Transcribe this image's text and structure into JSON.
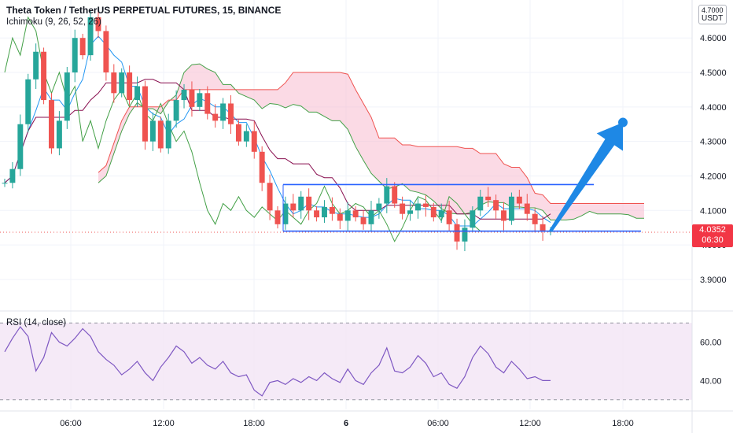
{
  "header": {
    "title": "Theta Token / TetherUS PERPETUAL FUTURES, 15, BINANCE",
    "indicator": "Ichimoku (9, 26, 52, 26)",
    "rsi": "RSI (14, close)"
  },
  "price_axis": {
    "top_label": "4.7000",
    "quote": "USDT",
    "last_price": "4.0352",
    "countdown": "06:30"
  },
  "colors": {
    "up": "#26a69a",
    "down": "#ef5350",
    "tenkan": "#2196f3",
    "kijun": "#880e4f",
    "chikou": "#43a047",
    "cloud_bull": "#a5d6a7",
    "cloud_bear": "#f8bbd0",
    "rsi": "#7e57c2",
    "arrow": "#1e88e5",
    "channel": "#2962ff"
  },
  "chart_data": {
    "type": "candlestick",
    "y_ticks": [
      "4.6000",
      "4.5000",
      "4.4000",
      "4.3000",
      "4.2000",
      "4.1000",
      "4.0000",
      "3.9000"
    ],
    "ylim": [
      3.82,
      4.71
    ],
    "x_ticks": [
      "06:00",
      "12:00",
      "18:00",
      "6",
      "06:00",
      "12:00",
      "18:00"
    ],
    "close_path": [
      4.18,
      4.22,
      4.35,
      4.48,
      4.56,
      4.42,
      4.28,
      4.36,
      4.5,
      4.6,
      4.55,
      4.66,
      4.62,
      4.5,
      4.44,
      4.5,
      4.42,
      4.46,
      4.3,
      4.36,
      4.28,
      4.36,
      4.42,
      4.45,
      4.4,
      4.44,
      4.38,
      4.36,
      4.41,
      4.35,
      4.3,
      4.33,
      4.27,
      4.18,
      4.1,
      4.06,
      4.12,
      4.1,
      4.14,
      4.1,
      4.08,
      4.11,
      4.09,
      4.07,
      4.1,
      4.08,
      4.06,
      4.1,
      4.12,
      4.17,
      4.12,
      4.09,
      4.1,
      4.12,
      4.11,
      4.08,
      4.1,
      4.06,
      4.01,
      4.05,
      4.1,
      4.14,
      4.13,
      4.1,
      4.07,
      4.14,
      4.12,
      4.09,
      4.06,
      4.04,
      4.04
    ],
    "rsi": {
      "y_ticks": [
        "60.00",
        "40.00"
      ],
      "ylim": [
        25,
        75
      ],
      "upper": 70,
      "lower": 30,
      "values": [
        55,
        62,
        68,
        63,
        45,
        52,
        65,
        60,
        58,
        62,
        67,
        63,
        55,
        51,
        48,
        43,
        46,
        50,
        44,
        40,
        47,
        52,
        58,
        55,
        49,
        52,
        48,
        46,
        50,
        44,
        42,
        43,
        35,
        32,
        39,
        40,
        38,
        41,
        39,
        42,
        40,
        44,
        41,
        39,
        46,
        40,
        38,
        44,
        48,
        57,
        45,
        44,
        47,
        53,
        49,
        42,
        44,
        38,
        36,
        42,
        52,
        58,
        54,
        47,
        44,
        50,
        46,
        41,
        42,
        40,
        40
      ]
    },
    "channel": {
      "top": 4.175,
      "bottom": 4.04
    },
    "projection": {
      "from": 4.04,
      "to": 4.355
    }
  }
}
